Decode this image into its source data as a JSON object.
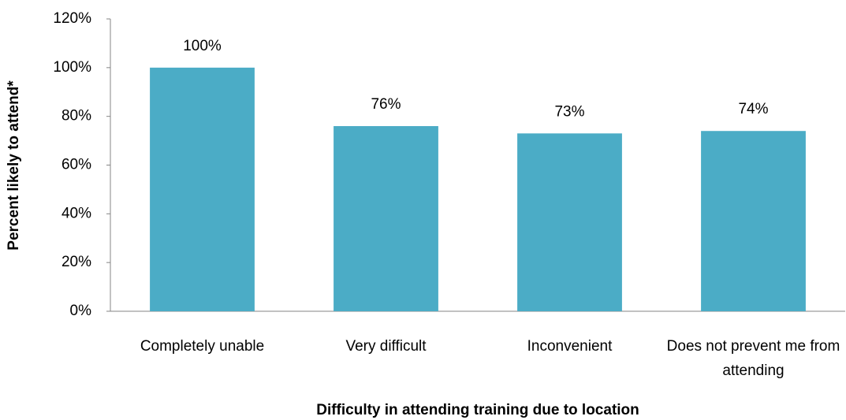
{
  "chart_data": {
    "type": "bar",
    "categories": [
      "Completely unable",
      "Very difficult",
      "Inconvenient",
      "Does not prevent me from attending"
    ],
    "values": [
      100,
      76,
      73,
      74
    ],
    "value_labels": [
      "100%",
      "76%",
      "73%",
      "74%"
    ],
    "color": "#4bacc6",
    "ylim": [
      0,
      120
    ],
    "yticks": [
      {
        "value": 0,
        "label": "0%"
      },
      {
        "value": 20,
        "label": "20%"
      },
      {
        "value": 40,
        "label": "40%"
      },
      {
        "value": 60,
        "label": "60%"
      },
      {
        "value": 80,
        "label": "80%"
      },
      {
        "value": 100,
        "label": "100%"
      },
      {
        "value": 120,
        "label": "120%"
      }
    ],
    "y_label": "Percent likely to attend*",
    "x_label": "Difficulty in attending training due to location",
    "grid": false
  }
}
